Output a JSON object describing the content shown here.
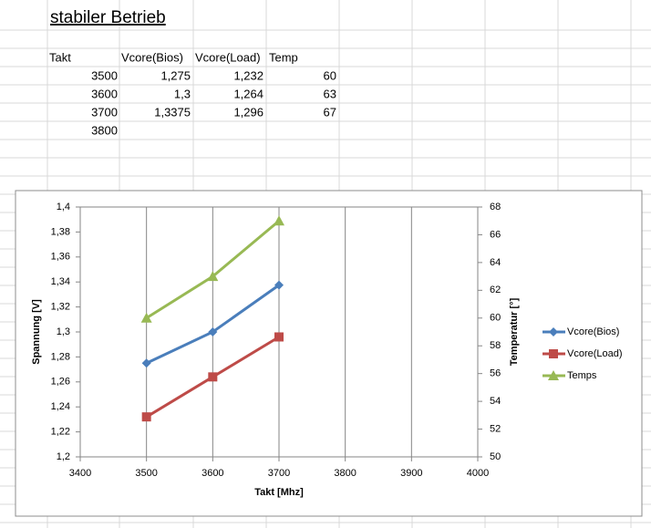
{
  "sheet": {
    "title": "stabiler Betrieb",
    "header": [
      "Takt",
      "Vcore(Bios)",
      "Vcore(Load)",
      "Temp"
    ],
    "rows": [
      [
        "3500",
        "1,275",
        "1,232",
        "60"
      ],
      [
        "3600",
        "1,3",
        "1,264",
        "63"
      ],
      [
        "3700",
        "1,3375",
        "1,296",
        "67"
      ],
      [
        "3800"
      ]
    ]
  },
  "chart_data": {
    "type": "line",
    "x": [
      3500,
      3600,
      3700
    ],
    "xlim": [
      3400,
      4000
    ],
    "xticks": [
      3400,
      3500,
      3600,
      3700,
      3800,
      3900,
      4000
    ],
    "ylim": [
      1.2,
      1.4
    ],
    "yticks": [
      {
        "value": 1.2,
        "label": "1,2"
      },
      {
        "value": 1.22,
        "label": "1,22"
      },
      {
        "value": 1.24,
        "label": "1,24"
      },
      {
        "value": 1.26,
        "label": "1,26"
      },
      {
        "value": 1.28,
        "label": "1,28"
      },
      {
        "value": 1.3,
        "label": "1,3"
      },
      {
        "value": 1.32,
        "label": "1,32"
      },
      {
        "value": 1.34,
        "label": "1,34"
      },
      {
        "value": 1.36,
        "label": "1,36"
      },
      {
        "value": 1.38,
        "label": "1,38"
      },
      {
        "value": 1.4,
        "label": "1,4"
      }
    ],
    "y2lim": [
      50,
      68
    ],
    "y2ticks": [
      50,
      52,
      54,
      56,
      58,
      60,
      62,
      64,
      66,
      68
    ],
    "x_label": "Takt [Mhz]",
    "y_label": "Spannung [V]",
    "y2_label": "Temperatur [°]",
    "grid": true,
    "legend": "right",
    "series": [
      {
        "name": "Vcore(Bios)",
        "color": "#4a7ebb",
        "marker": "diamond",
        "values": [
          1.275,
          1.3,
          1.3375
        ]
      },
      {
        "name": "Vcore(Load)",
        "color": "#be4b48",
        "marker": "square",
        "values": [
          1.232,
          1.264,
          1.296
        ]
      },
      {
        "name": "Temps",
        "color": "#98b954",
        "marker": "triangle",
        "axis": "y2",
        "values": [
          60,
          63,
          67
        ]
      }
    ]
  }
}
